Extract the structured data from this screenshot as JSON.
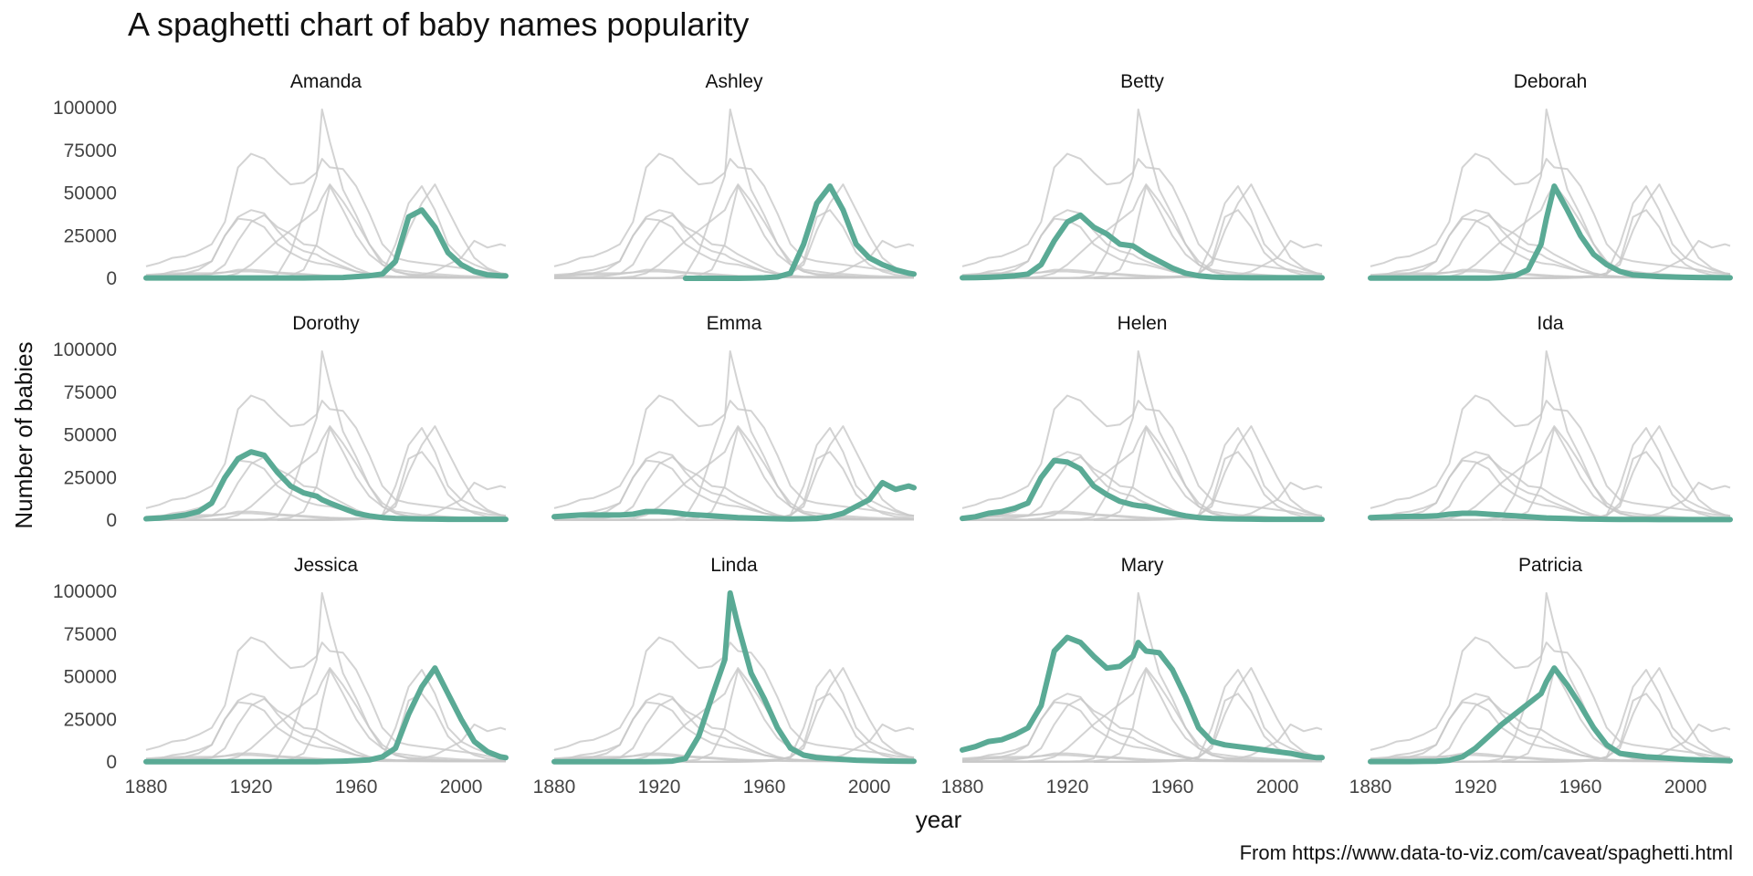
{
  "chart_data": {
    "type": "line",
    "title": "A spaghetti chart of baby names popularity",
    "caption": "From https://www.data-to-viz.com/caveat/spaghetti.html",
    "xlabel": "year",
    "ylabel": "Number of babies",
    "xlim": [
      1880,
      2017
    ],
    "ylim": [
      0,
      100000
    ],
    "xticks": [
      1880,
      1920,
      1960,
      2000
    ],
    "yticks": [
      0,
      25000,
      50000,
      75000,
      100000
    ],
    "highlight_color": "#5aaa95",
    "background_line_color": "#c8c8c8",
    "facet_layout": "3 rows x 4 columns",
    "x": [
      1880,
      1885,
      1890,
      1895,
      1900,
      1905,
      1910,
      1915,
      1920,
      1925,
      1930,
      1935,
      1940,
      1945,
      1947,
      1950,
      1955,
      1960,
      1965,
      1970,
      1975,
      1980,
      1985,
      1990,
      1995,
      2000,
      2005,
      2010,
      2015,
      2017
    ],
    "series": [
      {
        "name": "Amanda",
        "values": [
          200,
          200,
          200,
          200,
          200,
          200,
          200,
          200,
          200,
          200,
          200,
          200,
          200,
          300,
          300,
          400,
          500,
          1000,
          1500,
          2500,
          10000,
          36000,
          40000,
          30000,
          15000,
          8000,
          4000,
          2000,
          1500,
          1400
        ]
      },
      {
        "name": "Ashley",
        "values": [
          null,
          null,
          null,
          null,
          null,
          null,
          null,
          null,
          null,
          null,
          0,
          0,
          0,
          0,
          0,
          0,
          100,
          300,
          800,
          3000,
          20000,
          44000,
          54000,
          40000,
          20000,
          12000,
          8000,
          5000,
          3000,
          2500
        ]
      },
      {
        "name": "Betty",
        "values": [
          300,
          400,
          600,
          900,
          1500,
          2500,
          8000,
          22000,
          33000,
          37000,
          30000,
          26000,
          20000,
          19000,
          17000,
          14000,
          10000,
          6000,
          3000,
          1500,
          800,
          500,
          400,
          300,
          300,
          300,
          300,
          300,
          300,
          300
        ]
      },
      {
        "name": "Deborah",
        "values": [
          100,
          100,
          100,
          100,
          100,
          100,
          100,
          100,
          100,
          100,
          500,
          1500,
          5000,
          20000,
          35000,
          54000,
          40000,
          25000,
          14000,
          8000,
          4000,
          2000,
          1500,
          1000,
          800,
          600,
          500,
          400,
          300,
          300
        ]
      },
      {
        "name": "Dorothy",
        "values": [
          800,
          1200,
          2000,
          3000,
          5000,
          10000,
          25000,
          36000,
          40000,
          38000,
          28000,
          20000,
          16000,
          14000,
          12000,
          10000,
          7000,
          4000,
          2500,
          1500,
          1000,
          800,
          700,
          600,
          500,
          500,
          500,
          500,
          500,
          500
        ]
      },
      {
        "name": "Emma",
        "values": [
          2000,
          2500,
          3000,
          3000,
          3000,
          3000,
          3500,
          5000,
          5000,
          4500,
          3500,
          3000,
          2500,
          2000,
          1800,
          1500,
          1200,
          1000,
          800,
          700,
          800,
          1000,
          2000,
          4000,
          8000,
          12000,
          22000,
          18000,
          20000,
          19000
        ]
      },
      {
        "name": "Helen",
        "values": [
          1000,
          2000,
          4000,
          5000,
          7000,
          10000,
          25000,
          35000,
          34000,
          30000,
          20000,
          15000,
          11000,
          9000,
          8500,
          8000,
          6000,
          4000,
          2500,
          1500,
          1000,
          800,
          700,
          600,
          500,
          500,
          500,
          500,
          500,
          500
        ]
      },
      {
        "name": "Ida",
        "values": [
          1500,
          1800,
          2000,
          2200,
          2200,
          2500,
          3500,
          4000,
          4000,
          3500,
          3000,
          2500,
          2000,
          1500,
          1300,
          1100,
          900,
          700,
          600,
          500,
          400,
          400,
          400,
          300,
          300,
          300,
          300,
          300,
          300,
          300
        ]
      },
      {
        "name": "Jessica",
        "values": [
          100,
          100,
          100,
          100,
          100,
          100,
          100,
          100,
          100,
          100,
          100,
          100,
          100,
          100,
          200,
          300,
          500,
          800,
          1200,
          3000,
          8000,
          28000,
          44000,
          55000,
          40000,
          25000,
          12000,
          6000,
          3000,
          2500
        ]
      },
      {
        "name": "Linda",
        "values": [
          100,
          100,
          100,
          100,
          100,
          100,
          100,
          100,
          200,
          500,
          2000,
          15000,
          38000,
          60000,
          99000,
          80000,
          52000,
          37000,
          20000,
          8000,
          4000,
          2500,
          2000,
          1500,
          1000,
          800,
          600,
          500,
          400,
          400
        ]
      },
      {
        "name": "Mary",
        "values": [
          7000,
          9000,
          12000,
          13000,
          16000,
          20000,
          33000,
          65000,
          73000,
          70000,
          62000,
          55000,
          56000,
          62000,
          70000,
          65000,
          64000,
          54000,
          38000,
          20000,
          12000,
          10000,
          9000,
          8000,
          7000,
          6000,
          5000,
          3500,
          2500,
          2500
        ]
      },
      {
        "name": "Patricia",
        "values": [
          200,
          200,
          200,
          200,
          300,
          400,
          1000,
          3000,
          8000,
          15000,
          22000,
          28000,
          34000,
          40000,
          47000,
          55000,
          45000,
          33000,
          20000,
          10000,
          5000,
          4000,
          3000,
          2500,
          2000,
          1500,
          1200,
          1000,
          800,
          700
        ]
      }
    ]
  }
}
